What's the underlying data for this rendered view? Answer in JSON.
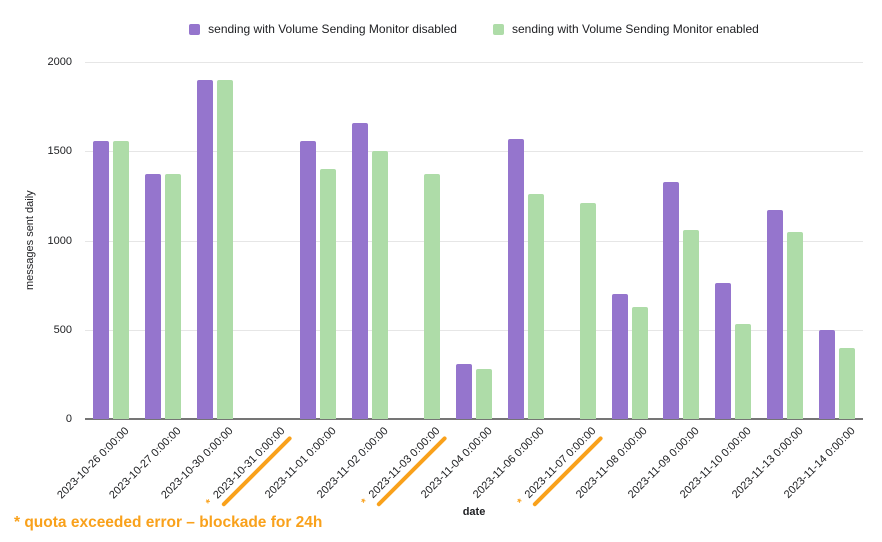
{
  "chart_data": {
    "type": "bar",
    "title": "",
    "xlabel": "date",
    "ylabel": "messages sent daily",
    "ylim": [
      0,
      2000
    ],
    "yticks": [
      0,
      500,
      1000,
      1500,
      2000
    ],
    "grid": "horizontal",
    "legend_position": "top",
    "categories": [
      "2023-10-26 0:00:00",
      "2023-10-27 0:00:00",
      "2023-10-30 0:00:00",
      "2023-10-31 0:00:00",
      "2023-11-01 0:00:00",
      "2023-11-02 0:00:00",
      "2023-11-03 0:00:00",
      "2023-11-04 0:00:00",
      "2023-11-06 0:00:00",
      "2023-11-07 0:00:00",
      "2023-11-08 0:00:00",
      "2023-11-09 0:00:00",
      "2023-11-10 0:00:00",
      "2023-11-13 0:00:00",
      "2023-11-14 0:00:00"
    ],
    "series": [
      {
        "name": "sending with Volume Sending Monitor disabled",
        "color": "#9575cd",
        "values": [
          1560,
          1370,
          1900,
          0,
          1560,
          1660,
          0,
          310,
          1570,
          0,
          700,
          1330,
          760,
          1170,
          500
        ]
      },
      {
        "name": "sending with Volume Sending Monitor enabled",
        "color": "#aedca8",
        "values": [
          1560,
          1370,
          1900,
          0,
          1400,
          1500,
          1370,
          280,
          1260,
          1210,
          630,
          1060,
          530,
          1050,
          400
        ]
      }
    ],
    "starred_category_indexes": [
      3,
      6,
      9
    ],
    "star_symbol": "*",
    "annotation_color": "#f9a11b"
  },
  "footnote": {
    "text": "* quota exceeded error – blockade for 24h",
    "color": "#f9a11b"
  },
  "colors": {
    "background": "#ffffff",
    "grid": "#e6e6e6",
    "axis_line": "#757575",
    "text": "#202124"
  }
}
